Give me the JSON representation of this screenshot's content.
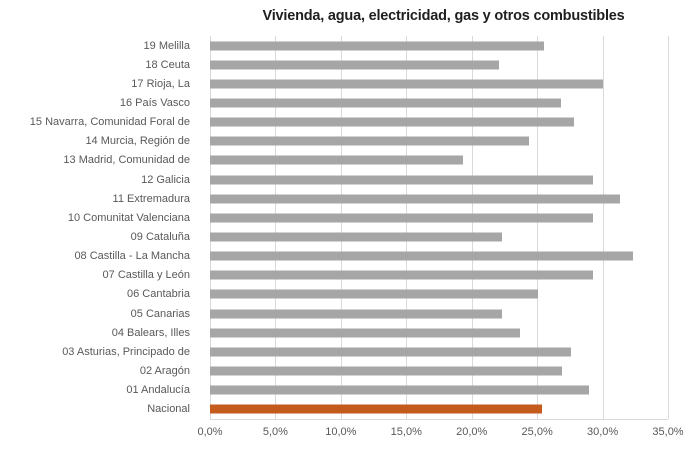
{
  "chart": {
    "title": "Vivienda, agua, electricidad, gas y otros combustibles",
    "colors": {
      "bar": "#a6a6a6",
      "highlight": "#c45b1c",
      "grid": "#d9d9d9",
      "axis_text": "#595959",
      "title_text": "#1f1f1f",
      "background": "#ffffff"
    }
  },
  "chart_data": {
    "type": "bar",
    "orientation": "horizontal",
    "title": "Vivienda, agua, electricidad, gas y otros combustibles",
    "categories": [
      "19 Melilla",
      "18 Ceuta",
      "17 Rioja, La",
      "16 País Vasco",
      "15 Navarra, Comunidad Foral de",
      "14 Murcia, Región de",
      "13 Madrid, Comunidad de",
      "12 Galicia",
      "11 Extremadura",
      "10 Comunitat Valenciana",
      "09 Cataluña",
      "08 Castilla - La Mancha",
      "07 Castilla y León",
      "06 Cantabria",
      "05 Canarias",
      "04 Balears, Illes",
      "03 Asturias, Principado de",
      "02 Aragón",
      "01 Andalucía",
      "Nacional"
    ],
    "values": [
      25.5,
      22.1,
      30.0,
      26.8,
      27.8,
      24.4,
      19.3,
      29.3,
      31.3,
      29.3,
      22.3,
      32.3,
      29.3,
      25.1,
      22.3,
      23.7,
      27.6,
      26.9,
      29.0,
      25.4
    ],
    "unit": "%",
    "highlight_category": "Nacional",
    "xlabel": "",
    "ylabel": "",
    "xlim": [
      0,
      35
    ],
    "x_tick_values": [
      0,
      5,
      10,
      15,
      20,
      25,
      30,
      35
    ],
    "x_tick_labels": [
      "0,0%",
      "5,0%",
      "10,0%",
      "15,0%",
      "20,0%",
      "25,0%",
      "30,0%",
      "35,0%"
    ],
    "grid": true,
    "legend": "none"
  }
}
